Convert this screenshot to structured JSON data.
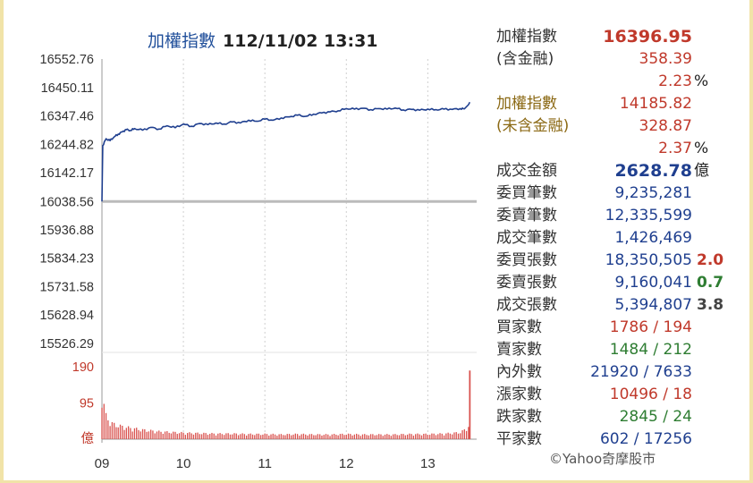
{
  "chart_data": {
    "type": "line",
    "title": "加權指數 112/11/02 13:31",
    "title_name": "加權指數",
    "title_time": "112/11/02 13:31",
    "reference_value": 16038.56,
    "y_ticks": [
      "16552.76",
      "16450.11",
      "16347.46",
      "16244.82",
      "16142.17",
      "16038.56",
      "15936.88",
      "15834.23",
      "15731.58",
      "15628.94",
      "15526.29"
    ],
    "ylim": [
      15526.29,
      16552.76
    ],
    "x_ticks": [
      "09",
      "10",
      "11",
      "12",
      "13"
    ],
    "xlim": [
      9.0,
      13.6
    ],
    "grid": "vertical dashed",
    "series": [
      {
        "values": [
          [
            9.0,
            16038.56
          ],
          [
            9.01,
            16240
          ],
          [
            9.05,
            16265
          ],
          [
            9.1,
            16258
          ],
          [
            9.15,
            16272
          ],
          [
            9.2,
            16282
          ],
          [
            9.25,
            16290
          ],
          [
            9.3,
            16298
          ],
          [
            9.35,
            16295
          ],
          [
            9.4,
            16302
          ],
          [
            9.5,
            16296
          ],
          [
            9.6,
            16306
          ],
          [
            9.7,
            16300
          ],
          [
            9.8,
            16312
          ],
          [
            9.9,
            16305
          ],
          [
            10.0,
            16318
          ],
          [
            10.1,
            16310
          ],
          [
            10.2,
            16320
          ],
          [
            10.3,
            16316
          ],
          [
            10.4,
            16322
          ],
          [
            10.5,
            16318
          ],
          [
            10.6,
            16326
          ],
          [
            10.7,
            16322
          ],
          [
            10.8,
            16332
          ],
          [
            10.9,
            16328
          ],
          [
            11.0,
            16336
          ],
          [
            11.1,
            16332
          ],
          [
            11.2,
            16340
          ],
          [
            11.3,
            16344
          ],
          [
            11.4,
            16350
          ],
          [
            11.5,
            16346
          ],
          [
            11.6,
            16354
          ],
          [
            11.7,
            16358
          ],
          [
            11.8,
            16362
          ],
          [
            11.9,
            16366
          ],
          [
            12.0,
            16374
          ],
          [
            12.1,
            16372
          ],
          [
            12.2,
            16375
          ],
          [
            12.3,
            16370
          ],
          [
            12.4,
            16374
          ],
          [
            12.5,
            16372
          ],
          [
            12.6,
            16376
          ],
          [
            12.7,
            16369
          ],
          [
            12.8,
            16371
          ],
          [
            12.9,
            16368
          ],
          [
            13.0,
            16372
          ],
          [
            13.1,
            16370
          ],
          [
            13.2,
            16372
          ],
          [
            13.3,
            16371
          ],
          [
            13.4,
            16374
          ],
          [
            13.45,
            16373
          ],
          [
            13.5,
            16388
          ],
          [
            13.516,
            16396.95
          ]
        ]
      }
    ],
    "volume": {
      "unit": "億",
      "y_ticks": [
        "190",
        "95",
        "億"
      ],
      "ylim": [
        0,
        190
      ],
      "values": [
        [
          9.0,
          110
        ],
        [
          9.05,
          55
        ],
        [
          9.1,
          40
        ],
        [
          9.15,
          35
        ],
        [
          9.2,
          32
        ],
        [
          9.3,
          28
        ],
        [
          9.4,
          25
        ],
        [
          9.5,
          22
        ],
        [
          9.6,
          20
        ],
        [
          9.7,
          18
        ],
        [
          9.8,
          17
        ],
        [
          9.9,
          16
        ],
        [
          10.0,
          15
        ],
        [
          10.2,
          14
        ],
        [
          10.4,
          13
        ],
        [
          10.6,
          13
        ],
        [
          10.8,
          12
        ],
        [
          11.0,
          12
        ],
        [
          11.2,
          11
        ],
        [
          11.4,
          12
        ],
        [
          11.6,
          11
        ],
        [
          11.8,
          11
        ],
        [
          12.0,
          12
        ],
        [
          12.2,
          11
        ],
        [
          12.4,
          11
        ],
        [
          12.6,
          11
        ],
        [
          12.8,
          12
        ],
        [
          13.0,
          12
        ],
        [
          13.2,
          13
        ],
        [
          13.4,
          16
        ],
        [
          13.45,
          22
        ],
        [
          13.5,
          30
        ],
        [
          13.516,
          180
        ]
      ]
    }
  },
  "stats": {
    "index_label": "加權指數",
    "index_value": "16396.95",
    "index_sub_label": "(含金融)",
    "index_change": "358.39",
    "index_pct": "2.23",
    "pct_unit": "%",
    "exfin_label": "加權指數",
    "exfin_value": "14185.82",
    "exfin_sub_label": "(未含金融)",
    "exfin_change": "328.87",
    "exfin_pct": "2.37",
    "turnover_label": "成交金額",
    "turnover_value": "2628.78",
    "turnover_unit": "億",
    "bid_orders_label": "委買筆數",
    "bid_orders": "9,235,281",
    "ask_orders_label": "委賣筆數",
    "ask_orders": "12,335,599",
    "trades_label": "成交筆數",
    "trades": "1,426,469",
    "bid_lots_label": "委買張數",
    "bid_lots": "18,350,505",
    "bid_lots_ratio": "2.0",
    "ask_lots_label": "委賣張數",
    "ask_lots": "9,160,041",
    "ask_lots_ratio": "0.7",
    "vol_lots_label": "成交張數",
    "vol_lots": "5,394,807",
    "vol_lots_ratio": "3.8",
    "buyers_label": "買家數",
    "buyers": "1786 / 194",
    "sellers_label": "賣家數",
    "sellers": "1484 / 212",
    "inout_label": "內外數",
    "inout": "21920 / 7633",
    "up_label": "漲家數",
    "up": "10496 / 18",
    "down_label": "跌家數",
    "down": "2845 / 24",
    "flat_label": "平家數",
    "flat": "602 / 17256"
  },
  "copyright": "©Yahoo奇摩股市",
  "colors": {
    "line": "#1f3f8f",
    "reference": "#bbbbbb",
    "volume": "#d9534f",
    "up": "#c0392b",
    "down": "#2e7d32",
    "neutral": "#1f3f8f"
  }
}
